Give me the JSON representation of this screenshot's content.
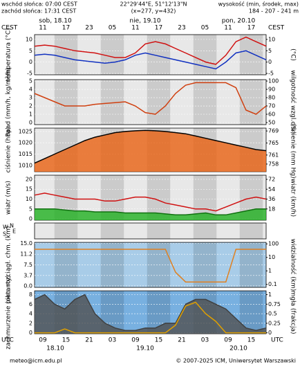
{
  "header": {
    "sunrise": "wschód słońca: 07:00 CEST",
    "sunset": "zachód słońca: 17:31 CEST",
    "coords": "22°29'44\"E, 51°12'13\"N",
    "grid": "(x=277, y=432)",
    "elev_title": "wysokość (min, środek, max)",
    "elev": "184 - 207 - 241 m"
  },
  "time_axis": {
    "top_zone": "CEST",
    "top_hours": [
      "11",
      "17",
      "23",
      "05",
      "11",
      "17",
      "23",
      "05",
      "11",
      "17"
    ],
    "days": [
      "sob, 18.10",
      "nie, 19.10",
      "pon, 20.10"
    ],
    "bottom_zone": "UTC",
    "bottom_hours": [
      "09",
      "15",
      "21",
      "03",
      "09",
      "15",
      "21",
      "03",
      "09",
      "15"
    ],
    "dates": [
      "18.10",
      "19.10",
      "20.10"
    ]
  },
  "footer": {
    "email": "meteo@icm.edu.pl",
    "copyright": "© 2007-2025 ICM, Uniwersytet Warszawski"
  },
  "chart_data": [
    {
      "type": "line",
      "ylabel": "temperatura (°C)",
      "y2label": "(°C)",
      "ylim": [
        -5.6,
        12.1
      ],
      "yticks": [
        10,
        5,
        0,
        -5
      ],
      "y2lim": [
        -5.6,
        12.1
      ],
      "y2ticks": [
        10,
        5,
        0,
        -5
      ],
      "series": [
        {
          "color": "#d01010",
          "values": [
            7,
            7.5,
            7,
            6,
            5,
            4.5,
            4,
            3,
            2,
            2,
            4,
            8,
            9,
            8,
            6,
            4,
            2,
            0,
            -1,
            3,
            9,
            11,
            9,
            7
          ]
        },
        {
          "color": "#1030c0",
          "values": [
            3,
            3.5,
            3,
            2,
            1,
            0.5,
            0,
            -0.5,
            0,
            1,
            3,
            4,
            3,
            2,
            1,
            0,
            -1,
            -2,
            -3,
            0,
            4,
            5,
            3,
            1
          ]
        }
      ]
    },
    {
      "type": "line",
      "ylabel": "opad (mm/h, kg/m²/h)",
      "y2label": "wilgotność wzgl. (%)",
      "ylim": [
        -0.25,
        5.17
      ],
      "yticks": [
        5,
        4,
        3,
        2,
        1,
        0
      ],
      "y2lim": [
        47.5,
        101.7
      ],
      "y2ticks": [
        100,
        90,
        80,
        70,
        60,
        50
      ],
      "series": [
        {
          "color": "#d04010",
          "axis": "y2",
          "values": [
            85,
            80,
            75,
            70,
            70,
            70,
            72,
            73,
            74,
            75,
            70,
            62,
            60,
            70,
            85,
            95,
            98,
            98,
            98,
            98,
            92,
            65,
            60,
            70
          ]
        }
      ]
    },
    {
      "type": "line",
      "ylabel": "ciśnienie (hPa)",
      "y2label": "ciśnienie (mm Hg)",
      "ylim": [
        1007.2,
        1026.5
      ],
      "yticks": [
        1025,
        1020,
        1015,
        1010
      ],
      "y2lim": [
        755.45,
        769.95
      ],
      "y2ticks": [
        769,
        765,
        761,
        758
      ],
      "series": [
        {
          "color": "#000000",
          "area": "#e86010",
          "values": [
            1011,
            1013,
            1015,
            1017,
            1019,
            1021,
            1022.5,
            1023.5,
            1024.5,
            1025,
            1025.3,
            1025.5,
            1025.3,
            1025,
            1024.5,
            1024,
            1023,
            1022,
            1021,
            1020,
            1019,
            1018,
            1017,
            1016.5
          ]
        }
      ]
    },
    {
      "type": "line",
      "ylabel": "wiatr (m/s)",
      "y2label": "wiatr (km/h)",
      "ylim": [
        -0.7,
        22.1
      ],
      "yticks": [
        20,
        15,
        10,
        5,
        0
      ],
      "y2lim": [
        -2.5,
        79.6
      ],
      "y2ticks": [
        72,
        54,
        36,
        18
      ],
      "series": [
        {
          "color": "#d01010",
          "values": [
            12,
            13,
            12,
            11,
            10,
            10,
            10,
            9,
            9,
            10,
            11,
            11,
            10,
            8,
            7,
            6,
            5,
            5,
            4,
            6,
            8,
            10,
            11,
            10
          ]
        },
        {
          "color": "#107010",
          "area": "#20b020",
          "values": [
            5,
            5,
            5,
            4.5,
            4,
            4,
            3.5,
            3.5,
            3.5,
            3,
            3,
            3,
            3,
            2.5,
            2,
            2,
            2.5,
            3,
            2,
            2,
            3,
            4,
            5,
            5
          ]
        }
      ]
    },
    {
      "type": "line",
      "ylabel": "W",
      "y2label": "E",
      "ylabels2": [
        "S",
        "N"
      ],
      "series": []
    },
    {
      "type": "line",
      "ylabel": "pion. rozciągł. chm. (km)",
      "y2label": "widzialność (km)",
      "ylim": [
        -0.5,
        15.4
      ],
      "yticks": [
        {
          "value": 15,
          "label": "15.0"
        },
        11.2,
        7.5,
        3.7,
        {
          "value": 0,
          "label": "0.0"
        }
      ],
      "y2log": true,
      "y2lim": [
        0.06,
        130
      ],
      "y2ticks": [
        100,
        10,
        1,
        0.1
      ],
      "series": [
        {
          "color": "#e08020",
          "axis": "y2",
          "values": [
            40,
            40,
            40,
            40,
            40,
            40,
            40,
            40,
            40,
            40,
            40,
            40,
            40,
            40,
            0.8,
            0.15,
            0.15,
            0.15,
            0.15,
            0.15,
            40,
            40,
            40,
            40
          ]
        }
      ]
    },
    {
      "type": "line",
      "ylabel": "zachmurzenie (oktanty)",
      "y2label": "mgła (frakcja)",
      "ylim": [
        -0.2,
        8.8
      ],
      "yticks": [
        8,
        6,
        4,
        2,
        0
      ],
      "y2lim": [
        -0.025,
        1.1
      ],
      "y2ticks": [
        1,
        0.75,
        0.5,
        0.25,
        0
      ],
      "series": [
        {
          "color": "#404040",
          "area": "#505050",
          "values": [
            7,
            8,
            6,
            5,
            7,
            8,
            4,
            2,
            1,
            0.5,
            0.5,
            1,
            1,
            2,
            2,
            6,
            7,
            7,
            6,
            5,
            3,
            1,
            0.5,
            1
          ]
        },
        {
          "color": "#e0a000",
          "axis": "y2",
          "values": [
            0,
            0,
            0,
            0.1,
            0,
            0,
            0,
            0,
            0,
            0,
            0,
            0,
            0,
            0,
            0.2,
            0.7,
            0.8,
            0.5,
            0.3,
            0,
            0,
            0,
            0,
            0
          ]
        }
      ]
    }
  ]
}
